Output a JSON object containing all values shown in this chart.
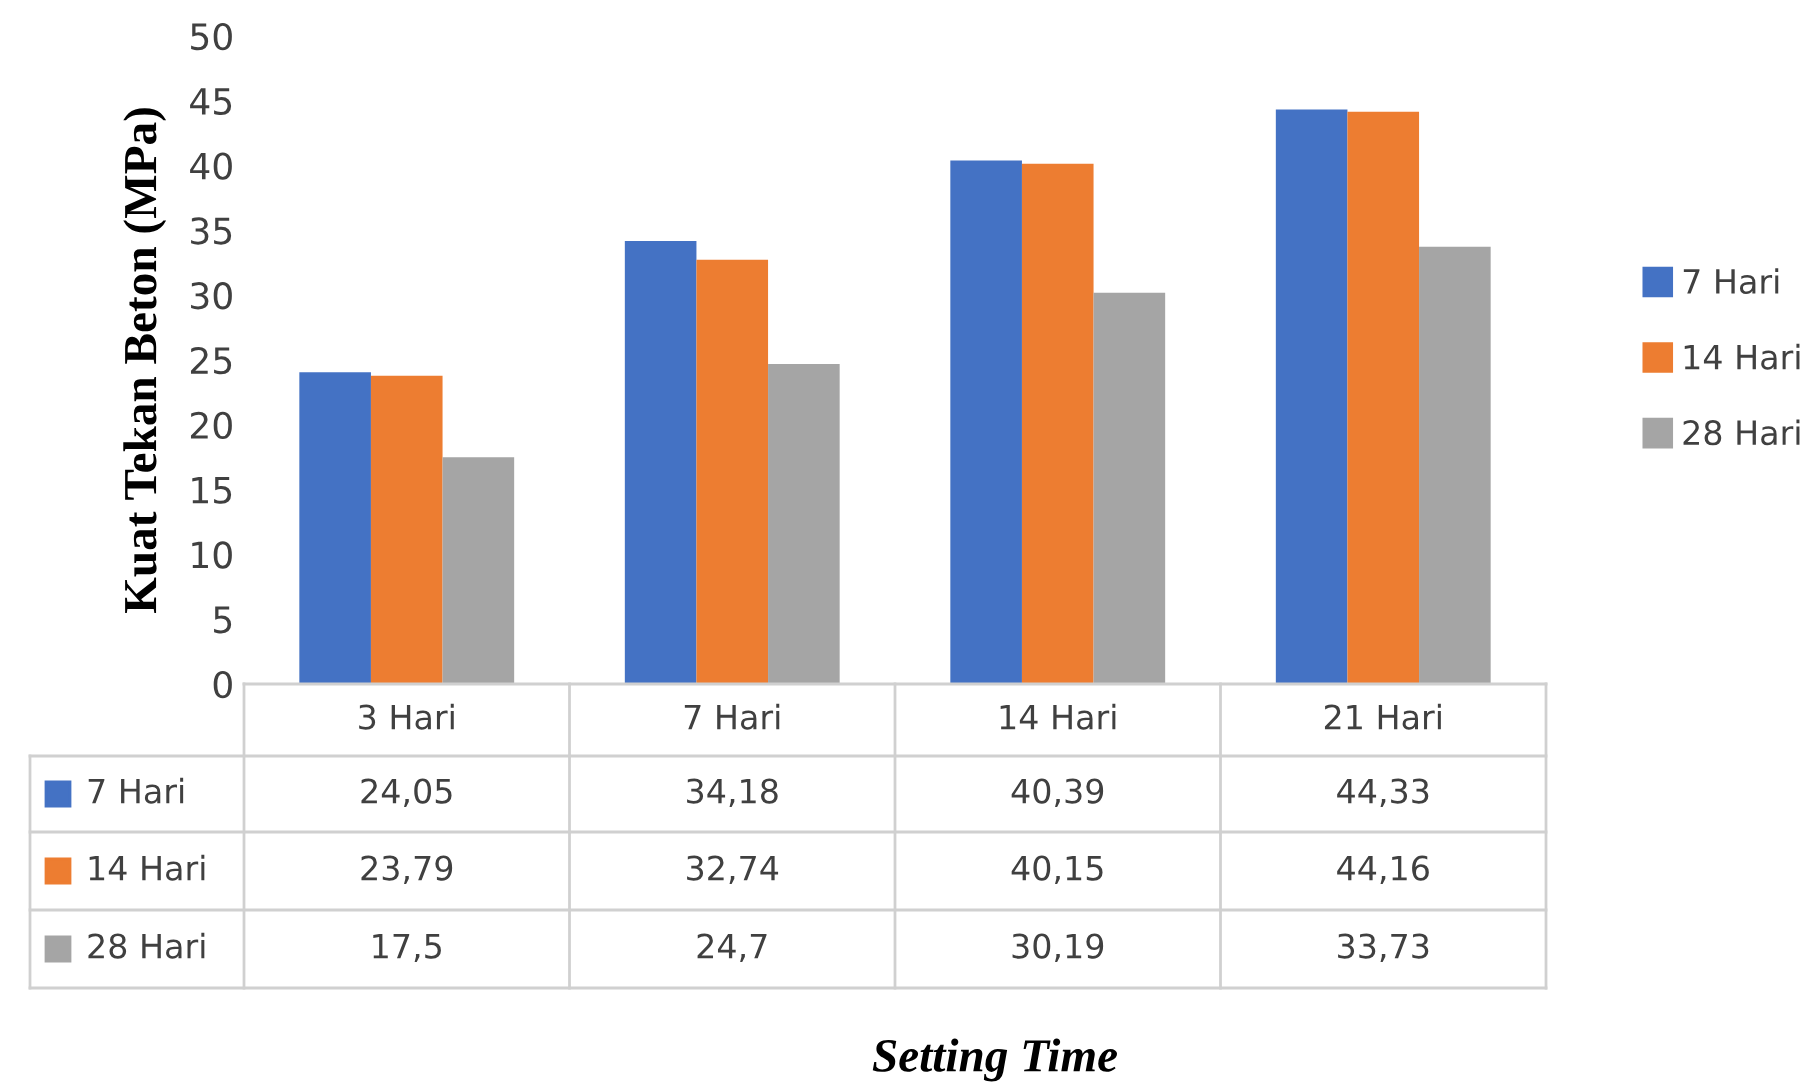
{
  "chart_data": {
    "type": "bar",
    "annotations": [
      "Setting Time"
    ],
    "ylabel": "Kuat Tekan Beton (MPa)",
    "categories": [
      "3 Hari",
      "7 Hari",
      "14 Hari",
      "21 Hari"
    ],
    "series": [
      {
        "name": "7 Hari",
        "color": "#4472c4",
        "values": [
          24.05,
          34.18,
          40.39,
          44.33
        ],
        "value_labels": [
          "24,05",
          "34,18",
          "40,39",
          "44,33"
        ]
      },
      {
        "name": "14 Hari",
        "color": "#ed7d31",
        "values": [
          23.79,
          32.74,
          40.15,
          44.16
        ],
        "value_labels": [
          "23,79",
          "32,74",
          "40,15",
          "44,16"
        ]
      },
      {
        "name": "28 Hari",
        "color": "#a5a5a5",
        "values": [
          17.5,
          24.7,
          30.19,
          33.73
        ],
        "value_labels": [
          "17,5",
          "24,7",
          "30,19",
          "33,73"
        ]
      }
    ],
    "ylim": [
      0,
      50
    ],
    "yticks": [
      0,
      5,
      10,
      15,
      20,
      25,
      30,
      35,
      40,
      45,
      50
    ],
    "grid": false,
    "legend": "right"
  }
}
